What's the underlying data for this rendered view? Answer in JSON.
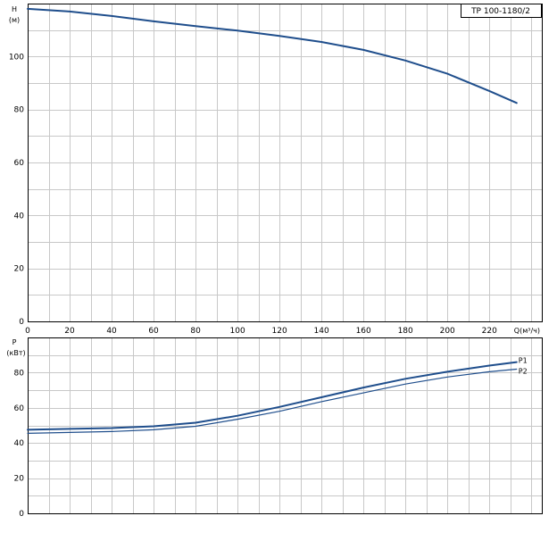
{
  "chart_data": [
    {
      "type": "line",
      "title": "TP 100-1180/2",
      "ylabel": "H",
      "yunit": "(м)",
      "xlabel": "Q(м³/ч)",
      "xlim": [
        0,
        245
      ],
      "ylim": [
        0,
        120
      ],
      "xticks": [
        0,
        20,
        40,
        60,
        80,
        100,
        120,
        140,
        160,
        180,
        200,
        220
      ],
      "yticks": [
        0,
        20,
        40,
        60,
        80,
        100
      ],
      "grid": true,
      "series": [
        {
          "color": "#1f4e8c",
          "x": [
            0,
            20,
            40,
            60,
            80,
            100,
            120,
            140,
            160,
            180,
            200,
            220,
            233
          ],
          "y": [
            118,
            117,
            115.3,
            113.3,
            111.5,
            109.8,
            107.8,
            105.5,
            102.5,
            98.5,
            93.5,
            87,
            82.5
          ]
        }
      ]
    },
    {
      "type": "line",
      "ylabel": "P",
      "yunit": "(кВт)",
      "xlim": [
        0,
        245
      ],
      "ylim": [
        0,
        100
      ],
      "yticks": [
        0,
        20,
        40,
        60,
        80
      ],
      "grid": true,
      "series": [
        {
          "name": "P1",
          "color": "#1f4e8c",
          "x": [
            0,
            20,
            40,
            60,
            80,
            100,
            120,
            140,
            160,
            180,
            200,
            220,
            233
          ],
          "y": [
            47.5,
            48,
            48.5,
            49.5,
            51.5,
            55.5,
            60.5,
            66,
            71.5,
            76.5,
            80.5,
            84,
            86
          ]
        },
        {
          "name": "P2",
          "color": "#1f4e8c",
          "x": [
            0,
            20,
            40,
            60,
            80,
            100,
            120,
            140,
            160,
            180,
            200,
            220,
            233
          ],
          "y": [
            45.5,
            46,
            46.5,
            47.5,
            49.5,
            53.5,
            58,
            63.5,
            68.5,
            73.5,
            77.5,
            80.5,
            82
          ]
        }
      ]
    }
  ]
}
